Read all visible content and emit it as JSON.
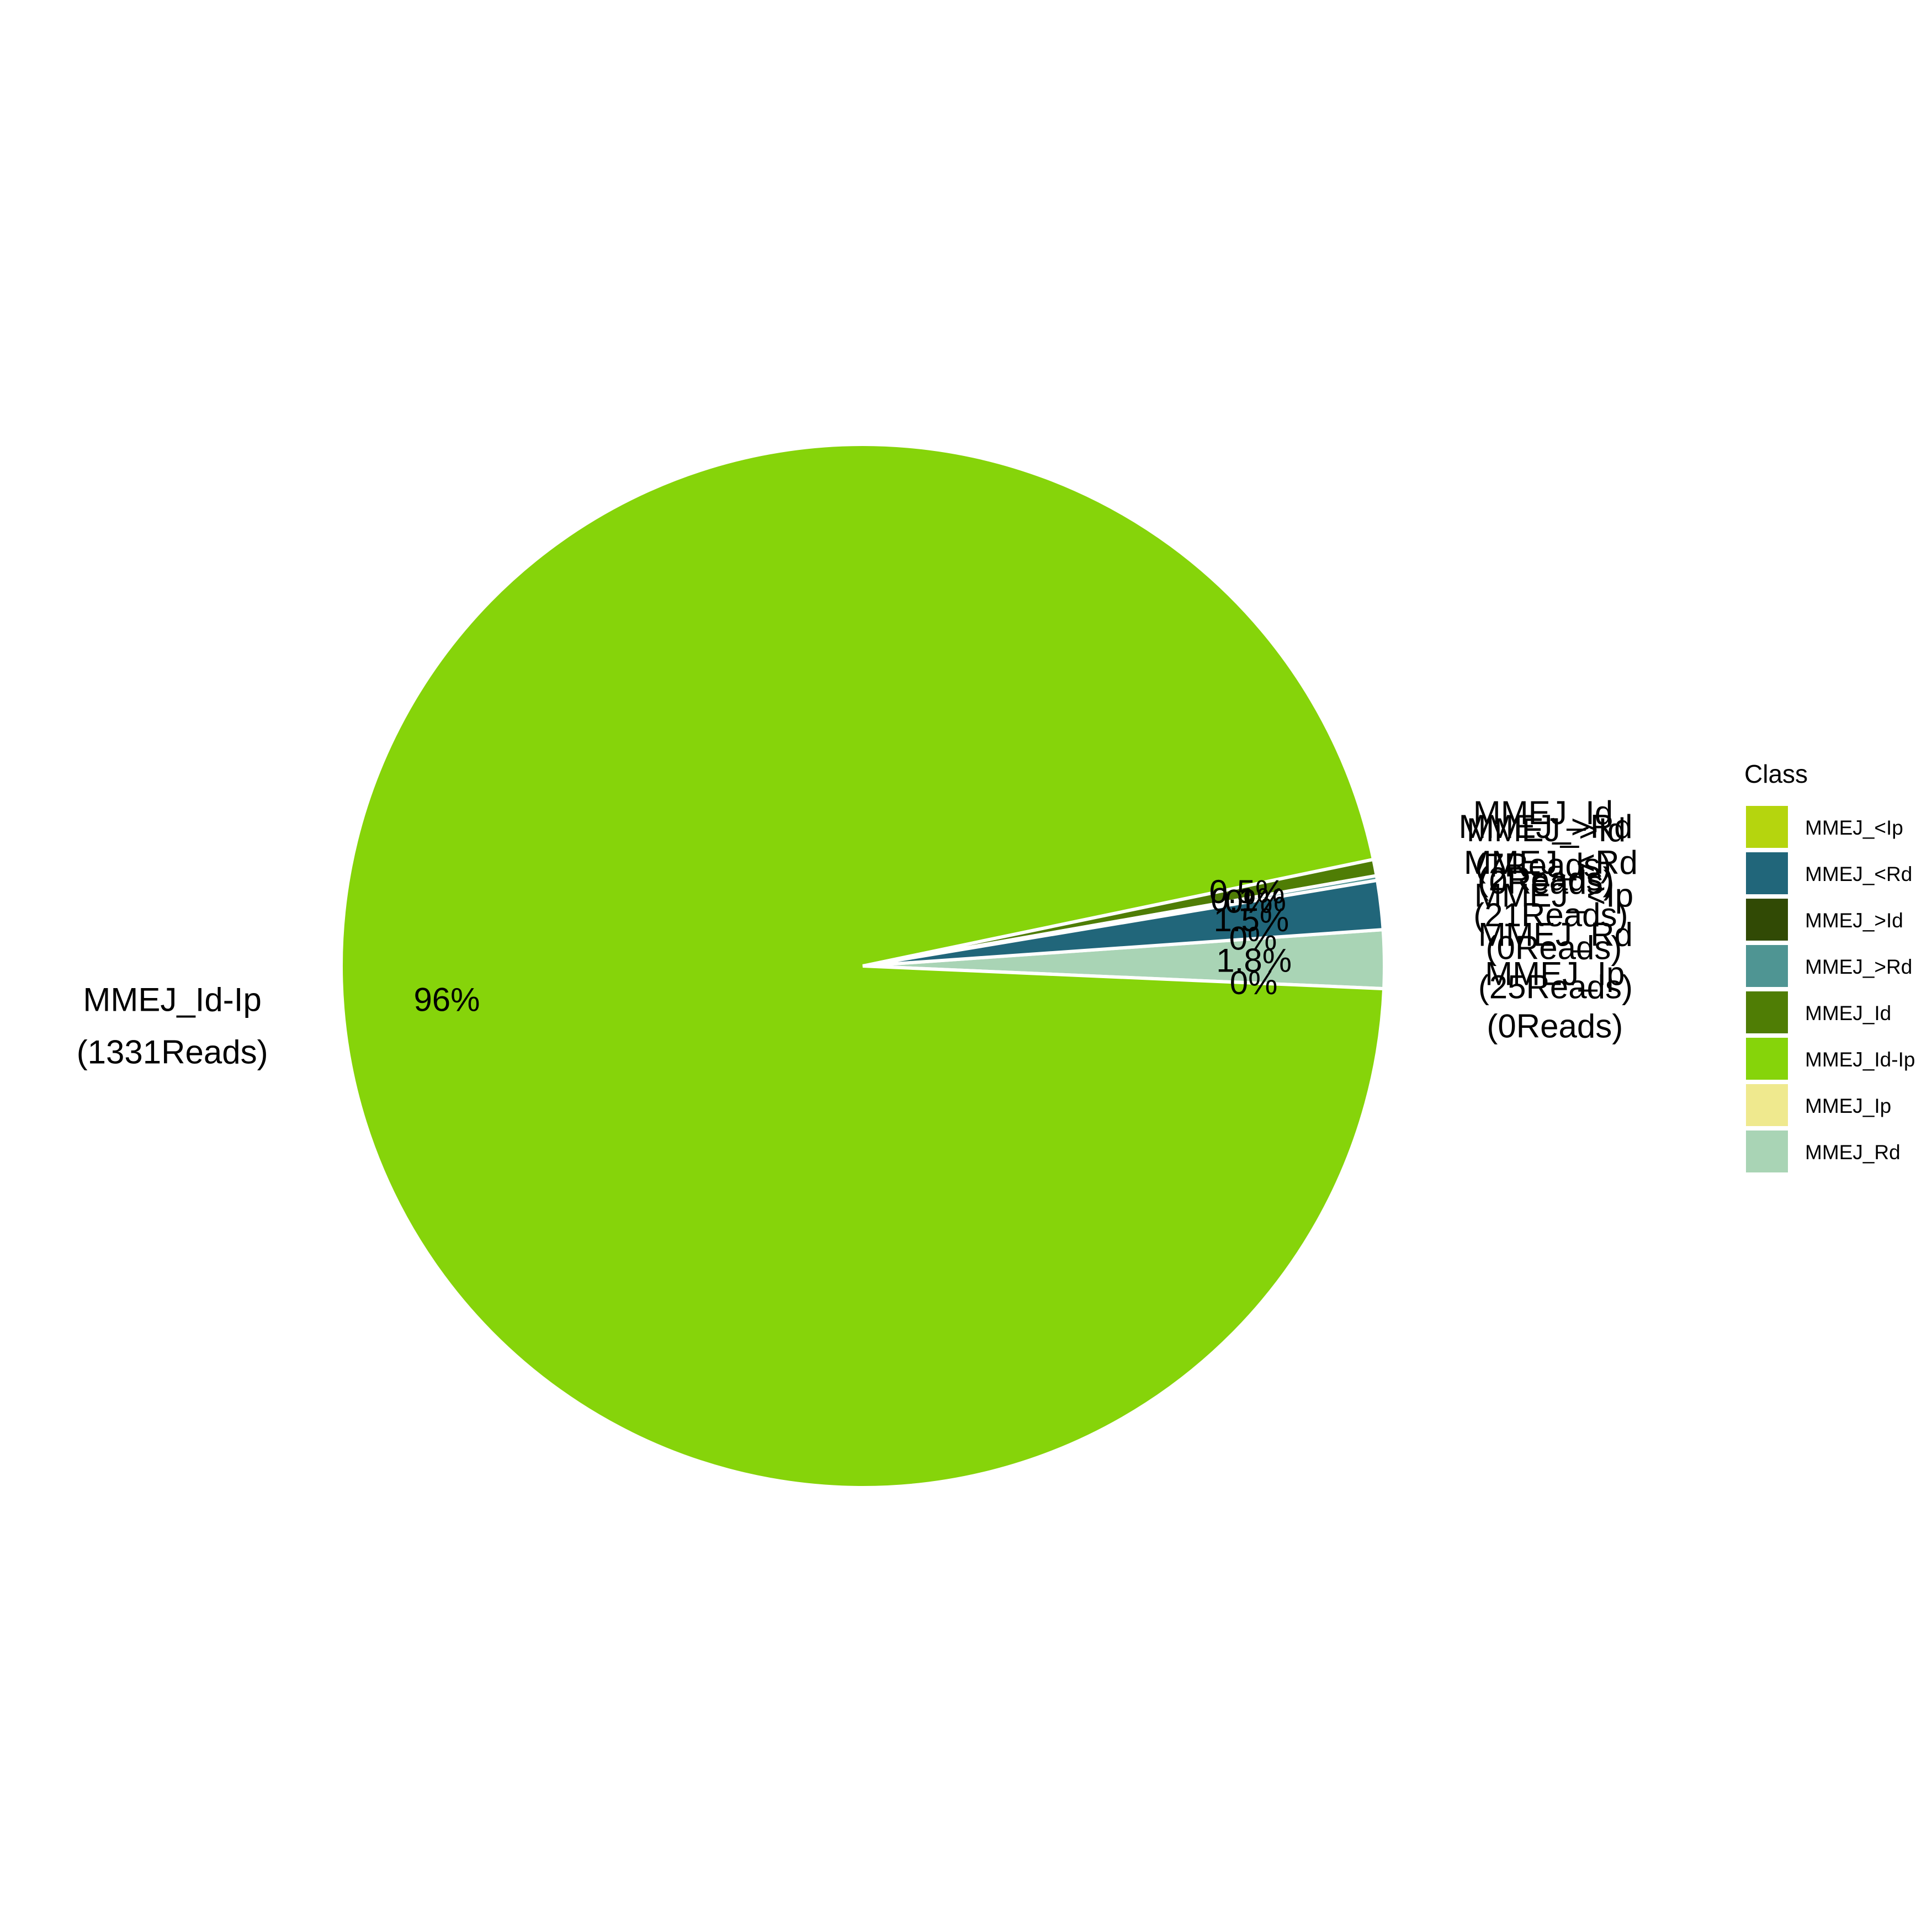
{
  "chart_data": {
    "type": "pie",
    "title": "",
    "legend": {
      "title": "Class",
      "placement": "right"
    },
    "slices": [
      {
        "name": "MMEJ_Rd",
        "reads": 25,
        "percent_label": "1.8%",
        "label": "MMEJ_Rd",
        "reads_label": "(25Reads)",
        "color": "#a9d4b5"
      },
      {
        "name": "MMEJ_Ip",
        "reads": 0,
        "percent_label": "0%",
        "label": "MMEJ_Ip",
        "reads_label": "(0Reads)",
        "color": "#efe98e"
      },
      {
        "name": "MMEJ_Id-Ip",
        "reads": 1331,
        "percent_label": "96%",
        "label": "MMEJ_Id-Ip",
        "reads_label": "(1331Reads)",
        "color": "#86d40a"
      },
      {
        "name": "MMEJ_Id",
        "reads": 7,
        "percent_label": "0.5%",
        "label": "MMEJ_Id",
        "reads_label": "(7Reads)",
        "color": "#4f7d05"
      },
      {
        "name": "MMEJ_>Rd",
        "reads": 2,
        "percent_label": "0.1%",
        "label": "MMEJ_>Rd",
        "reads_label": "(2Reads)",
        "color": "#4f9593"
      },
      {
        "name": "MMEJ_>Id",
        "reads": 0,
        "percent_label": "0%",
        "label": "MMEJ_>Id",
        "reads_label": "(0Reads)",
        "color": "#314a05"
      },
      {
        "name": "MMEJ_<Rd",
        "reads": 21,
        "percent_label": "1.5%",
        "label": "MMEJ_<Rd",
        "reads_label": "(21Reads)",
        "color": "#21667a"
      },
      {
        "name": "MMEJ_<Ip",
        "reads": 0,
        "percent_label": "0%",
        "label": "MMEJ_<Ip",
        "reads_label": "(0Reads)",
        "color": "#b5d50e"
      }
    ],
    "legend_entries": [
      {
        "label": "MMEJ_<Ip",
        "color": "#b5d50e"
      },
      {
        "label": "MMEJ_<Rd",
        "color": "#21667a"
      },
      {
        "label": "MMEJ_>Id",
        "color": "#314a05"
      },
      {
        "label": "MMEJ_>Rd",
        "color": "#4f9593"
      },
      {
        "label": "MMEJ_Id",
        "color": "#4f7d05"
      },
      {
        "label": "MMEJ_Id-Ip",
        "color": "#86d40a"
      },
      {
        "label": "MMEJ_Ip",
        "color": "#efe98e"
      },
      {
        "label": "MMEJ_Rd",
        "color": "#a9d4b5"
      }
    ]
  }
}
